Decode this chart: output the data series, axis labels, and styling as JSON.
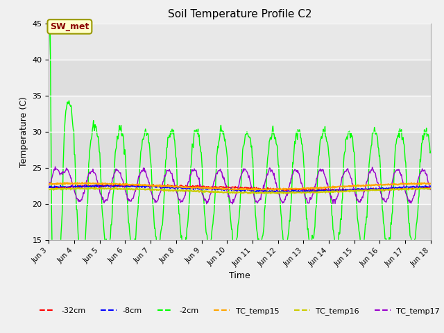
{
  "title": "Soil Temperature Profile C2",
  "xlabel": "Time",
  "ylabel": "Temperature (C)",
  "ylim": [
    15,
    45
  ],
  "xlim_days": [
    3,
    18
  ],
  "fig_facecolor": "#f0f0f0",
  "plot_bg_color": "#e8e8e8",
  "annotation_text": "SW_met",
  "annotation_color": "#8B0000",
  "annotation_bg": "#ffffcc",
  "annotation_border": "#999900",
  "legend_labels": [
    "-32cm",
    "-8cm",
    "-2cm",
    "TC_temp15",
    "TC_temp16",
    "TC_temp17"
  ],
  "legend_colors": [
    "#ff0000",
    "#0000ff",
    "#00ff00",
    "#ffa500",
    "#cccc00",
    "#9900cc"
  ],
  "gridlines_y": [
    15,
    20,
    25,
    30,
    35,
    40,
    45
  ],
  "xtick_labels": [
    "Jun 3",
    "Jun 4",
    "Jun 5",
    "Jun 6",
    "Jun 7",
    "Jun 8",
    "Jun 9",
    "Jun 10",
    "Jun 11",
    "Jun 12",
    "Jun 13",
    "Jun 14",
    "Jun 15",
    "Jun 16",
    "Jun 17",
    "Jun 18"
  ],
  "xtick_positions": [
    3,
    4,
    5,
    6,
    7,
    8,
    9,
    10,
    11,
    12,
    13,
    14,
    15,
    16,
    17,
    18
  ]
}
